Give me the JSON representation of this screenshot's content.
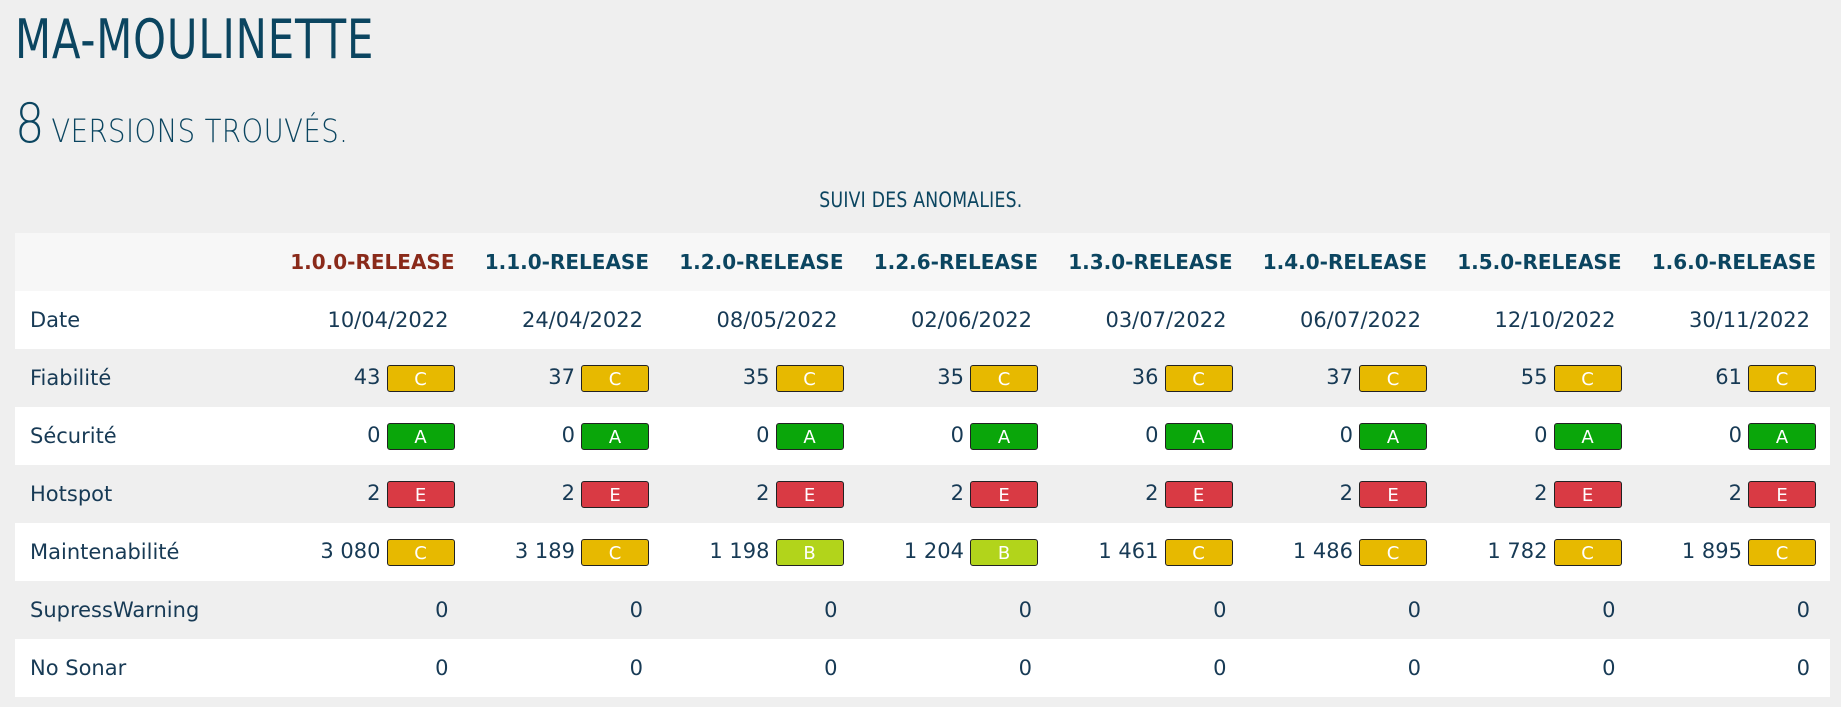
{
  "header": {
    "project": "MA-MOULINETTE",
    "count": "8",
    "count_text": "VERSIONS TROUVÉS."
  },
  "caption": "SUIVI DES ANOMALIES.",
  "colors": {
    "A": "#0aa60a",
    "B": "#b2d41b",
    "C": "#e7b900",
    "E": "#d93a44",
    "highlight": "#8a2a1a"
  },
  "versions": [
    "1.0.0-RELEASE",
    "1.1.0-RELEASE",
    "1.2.0-RELEASE",
    "1.2.6-RELEASE",
    "1.3.0-RELEASE",
    "1.4.0-RELEASE",
    "1.5.0-RELEASE",
    "1.6.0-RELEASE"
  ],
  "rows": [
    {
      "label": "Date",
      "cells": [
        {
          "v": "10/04/2022"
        },
        {
          "v": "24/04/2022"
        },
        {
          "v": "08/05/2022"
        },
        {
          "v": "02/06/2022"
        },
        {
          "v": "03/07/2022"
        },
        {
          "v": "06/07/2022"
        },
        {
          "v": "12/10/2022"
        },
        {
          "v": "30/11/2022"
        }
      ]
    },
    {
      "label": "Fiabilité",
      "cells": [
        {
          "v": "43",
          "g": "C"
        },
        {
          "v": "37",
          "g": "C"
        },
        {
          "v": "35",
          "g": "C"
        },
        {
          "v": "35",
          "g": "C"
        },
        {
          "v": "36",
          "g": "C"
        },
        {
          "v": "37",
          "g": "C"
        },
        {
          "v": "55",
          "g": "C"
        },
        {
          "v": "61",
          "g": "C"
        }
      ]
    },
    {
      "label": "Sécurité",
      "cells": [
        {
          "v": "0",
          "g": "A"
        },
        {
          "v": "0",
          "g": "A"
        },
        {
          "v": "0",
          "g": "A"
        },
        {
          "v": "0",
          "g": "A"
        },
        {
          "v": "0",
          "g": "A"
        },
        {
          "v": "0",
          "g": "A"
        },
        {
          "v": "0",
          "g": "A"
        },
        {
          "v": "0",
          "g": "A"
        }
      ]
    },
    {
      "label": "Hotspot",
      "cells": [
        {
          "v": "2",
          "g": "E"
        },
        {
          "v": "2",
          "g": "E"
        },
        {
          "v": "2",
          "g": "E"
        },
        {
          "v": "2",
          "g": "E"
        },
        {
          "v": "2",
          "g": "E"
        },
        {
          "v": "2",
          "g": "E"
        },
        {
          "v": "2",
          "g": "E"
        },
        {
          "v": "2",
          "g": "E"
        }
      ]
    },
    {
      "label": "Maintenabilité",
      "cells": [
        {
          "v": "3 080",
          "g": "C"
        },
        {
          "v": "3 189",
          "g": "C"
        },
        {
          "v": "1 198",
          "g": "B"
        },
        {
          "v": "1 204",
          "g": "B"
        },
        {
          "v": "1 461",
          "g": "C"
        },
        {
          "v": "1 486",
          "g": "C"
        },
        {
          "v": "1 782",
          "g": "C"
        },
        {
          "v": "1 895",
          "g": "C"
        }
      ]
    },
    {
      "label": "SupressWarning",
      "cells": [
        {
          "v": "0"
        },
        {
          "v": "0"
        },
        {
          "v": "0"
        },
        {
          "v": "0"
        },
        {
          "v": "0"
        },
        {
          "v": "0"
        },
        {
          "v": "0"
        },
        {
          "v": "0"
        }
      ]
    },
    {
      "label": "No Sonar",
      "cells": [
        {
          "v": "0"
        },
        {
          "v": "0"
        },
        {
          "v": "0"
        },
        {
          "v": "0"
        },
        {
          "v": "0"
        },
        {
          "v": "0"
        },
        {
          "v": "0"
        },
        {
          "v": "0"
        }
      ]
    }
  ]
}
